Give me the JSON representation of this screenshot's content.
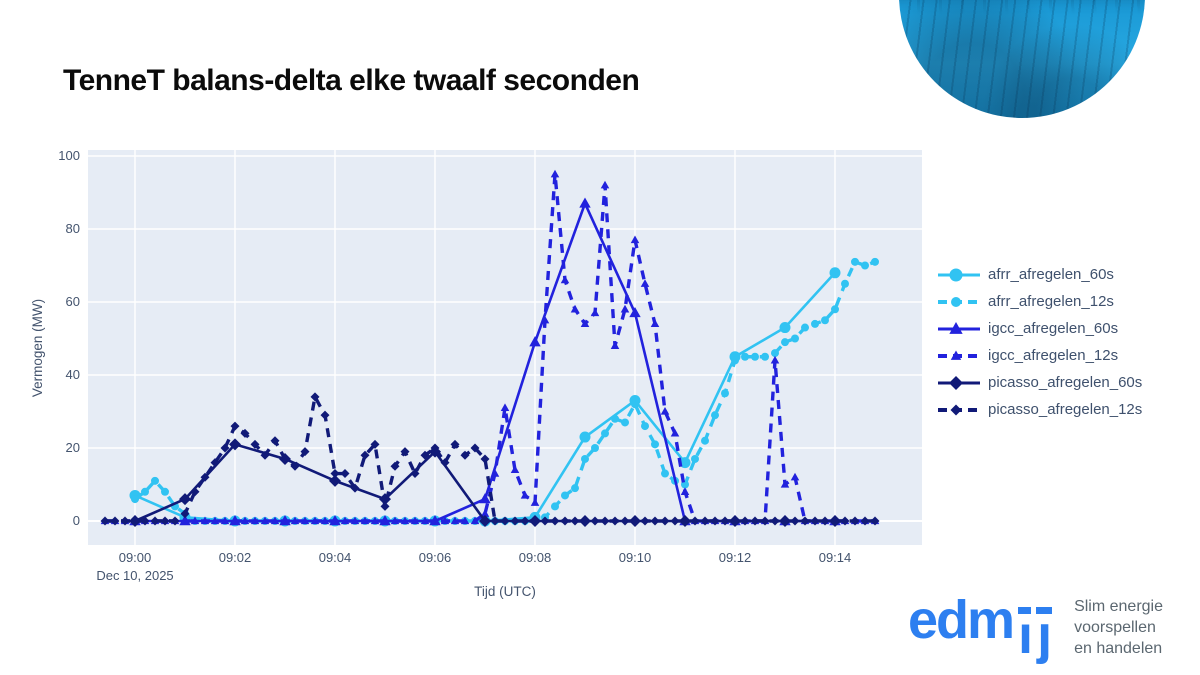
{
  "page": {
    "title": "TenneT balans-delta elke twaalf seconden"
  },
  "logo": {
    "part_edm": "edm",
    "part_i": "ı",
    "part_j": "ȷ",
    "tagline_line1": "Slim energie",
    "tagline_line2": "voorspellen",
    "tagline_line3": "en handelen"
  },
  "colors": {
    "afrr": "#31c3f2",
    "igcc": "#2222dd",
    "picasso": "#111a78",
    "plot_bg": "#e6ecf5",
    "grid": "#ffffff",
    "axis_text": "#44546e",
    "legend_text": "#3f516d",
    "logo_blue": "#2d7ff0",
    "tagline_gray": "#5b6770"
  },
  "chart_data": {
    "type": "line",
    "title": "",
    "xlabel": "Tijd (UTC)",
    "ylabel": "Vermogen (MW)",
    "x_unit": "minutes after 09:00 UTC, Dec 10, 2025",
    "x_date_label": "Dec 10, 2025",
    "x_tick_labels": [
      "09:00",
      "09:02",
      "09:04",
      "09:06",
      "09:08",
      "09:10",
      "09:12",
      "09:14"
    ],
    "x_tick_minutes": [
      0,
      2,
      4,
      6,
      8,
      10,
      12,
      14
    ],
    "y_ticks": [
      0,
      20,
      40,
      60,
      80,
      100
    ],
    "ylim": [
      0,
      100
    ],
    "xlim_minutes": [
      -0.94,
      15.74
    ],
    "grid": true,
    "legend_position": "right",
    "series": [
      {
        "name": "afrr_afregelen_60s",
        "color": "#31c3f2",
        "dash": "solid",
        "marker": "circle",
        "marker_size": 5.5,
        "line_width": 2.6,
        "x_start": 0,
        "x_step": 1,
        "values": [
          7,
          1,
          0,
          0,
          0,
          0,
          0,
          0,
          1,
          23,
          33,
          16,
          45,
          53,
          68
        ]
      },
      {
        "name": "afrr_afregelen_12s",
        "color": "#31c3f2",
        "dash": "dash",
        "marker": "circle",
        "marker_size": 4,
        "line_width": 3.4,
        "x_start": 0,
        "x_step": 0.2,
        "values": [
          6,
          8,
          11,
          8,
          4,
          2,
          0,
          0,
          0,
          0,
          0,
          0,
          0,
          0,
          0,
          0,
          0,
          0,
          0,
          0,
          0,
          0,
          0,
          0,
          0,
          0,
          0,
          0,
          0,
          0,
          0,
          0,
          0,
          0,
          0,
          0,
          0,
          0,
          0,
          0,
          0,
          1,
          4,
          7,
          9,
          17,
          20,
          24,
          28,
          27,
          32,
          26,
          21,
          13,
          11,
          10,
          17,
          22,
          29,
          35,
          44,
          45,
          45,
          45,
          46,
          49,
          50,
          53,
          54,
          55,
          58,
          65,
          71,
          70,
          71
        ]
      },
      {
        "name": "igcc_afregelen_60s",
        "color": "#2222dd",
        "dash": "solid",
        "marker": "triangle",
        "marker_size": 6,
        "line_width": 2.6,
        "x_start": 0,
        "x_step": 1,
        "values": [
          0,
          0,
          0,
          0,
          0,
          0,
          0,
          6,
          49,
          87,
          57,
          0,
          0,
          0,
          0
        ]
      },
      {
        "name": "igcc_afregelen_12s",
        "color": "#2222dd",
        "dash": "dash",
        "marker": "triangle",
        "marker_size": 4.5,
        "line_width": 3.4,
        "x_start": -0.6,
        "x_step": 0.2,
        "values": [
          0,
          0,
          0,
          0,
          0,
          0,
          0,
          0,
          0,
          0,
          0,
          0,
          0,
          0,
          0,
          0,
          0,
          0,
          0,
          0,
          0,
          0,
          0,
          0,
          0,
          0,
          0,
          0,
          0,
          0,
          0,
          0,
          0,
          0,
          0,
          0,
          0,
          0,
          2,
          13,
          31,
          14,
          7,
          5,
          55,
          95,
          66,
          58,
          54,
          57,
          92,
          48,
          58,
          77,
          65,
          54,
          30,
          24,
          8,
          0,
          0,
          0,
          0,
          0,
          0,
          0,
          0,
          44,
          10,
          12,
          0,
          0,
          0,
          0,
          0,
          0,
          0,
          0
        ]
      },
      {
        "name": "picasso_afregelen_60s",
        "color": "#111a78",
        "dash": "solid",
        "marker": "diamond",
        "marker_size": 6,
        "line_width": 2.6,
        "x_start": 0,
        "x_step": 1,
        "values": [
          0,
          6,
          21,
          17,
          11,
          6,
          19,
          0,
          0,
          0,
          0,
          0,
          0,
          0,
          0
        ]
      },
      {
        "name": "picasso_afregelen_12s",
        "color": "#111a78",
        "dash": "dash",
        "marker": "diamond",
        "marker_size": 4.5,
        "line_width": 3.4,
        "x_start": -0.6,
        "x_step": 0.2,
        "values": [
          0,
          0,
          0,
          0,
          0,
          0,
          0,
          0,
          2,
          8,
          12,
          16,
          20,
          26,
          24,
          21,
          18,
          22,
          17,
          15,
          19,
          34,
          29,
          13,
          13,
          9,
          18,
          21,
          4,
          15,
          19,
          13,
          18,
          20,
          16,
          21,
          18,
          20,
          17,
          0,
          0,
          0,
          0,
          0,
          0,
          0,
          0,
          0,
          0,
          0,
          0,
          0,
          0,
          0,
          0,
          0,
          0,
          0,
          0,
          0,
          0,
          0,
          0,
          0,
          0,
          0,
          0,
          0,
          0,
          0,
          0,
          0,
          0,
          0,
          0,
          0,
          0,
          0
        ]
      }
    ]
  }
}
